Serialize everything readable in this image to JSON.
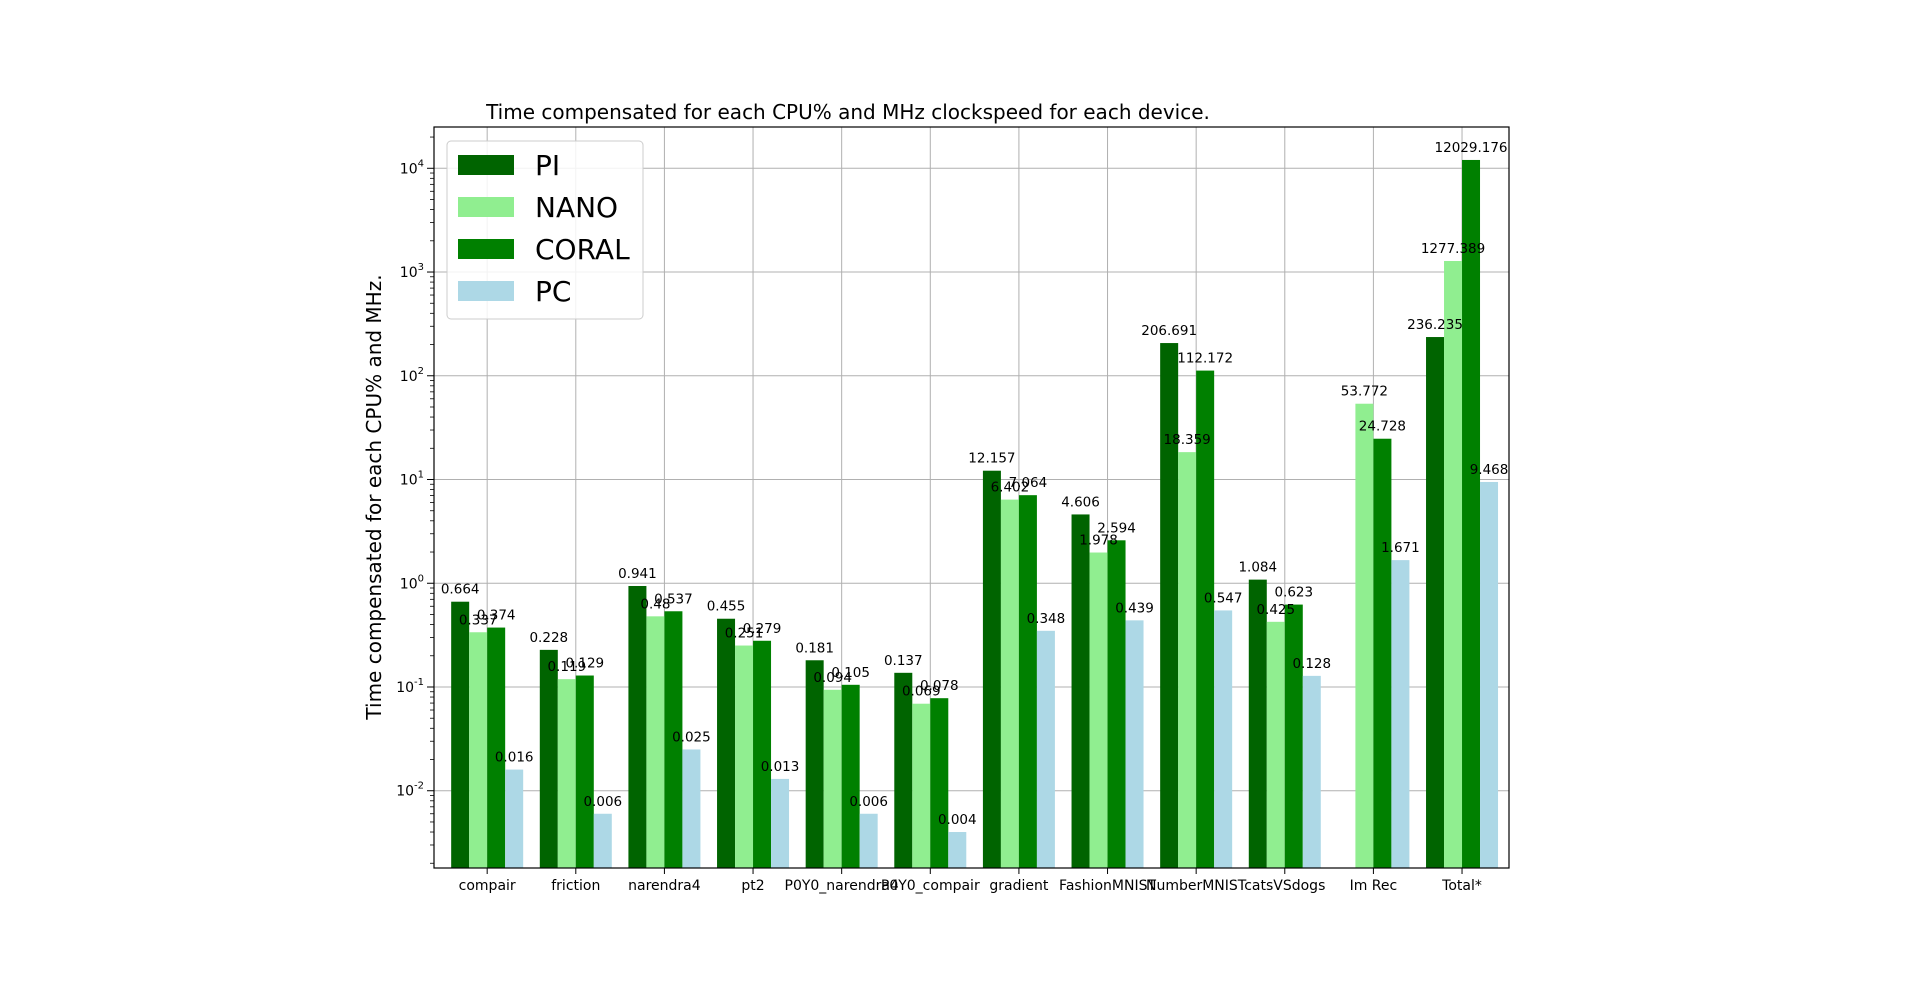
{
  "chart_data": {
    "type": "bar",
    "title": "Time compensated for each CPU% and MHz clockspeed for each device.",
    "xlabel": "",
    "ylabel": "Time compensated for each CPU% and MHz.",
    "yscale": "log",
    "ylim": [
      0.0018,
      25000
    ],
    "grid": true,
    "legend_position": "top-left",
    "categories": [
      "compair",
      "friction",
      "narendra4",
      "pt2",
      "P0Y0_narendra4",
      "P0Y0_compair",
      "gradient",
      "FashionMNIST",
      "NumberMNIST",
      "catsVSdogs",
      "Im Rec",
      "Total*"
    ],
    "series": [
      {
        "name": "PI",
        "color": "#006400",
        "values": [
          0.664,
          0.228,
          0.941,
          0.455,
          0.181,
          0.137,
          12.157,
          4.606,
          206.691,
          1.084,
          null,
          236.235
        ],
        "labels": [
          "0.664",
          "0.228",
          "0.941",
          "0.455",
          "0.181",
          "0.137",
          "12.157",
          "4.606",
          "206.691",
          "1.084",
          "",
          "236.235"
        ]
      },
      {
        "name": "NANO",
        "color": "#90ee90",
        "values": [
          0.337,
          0.119,
          0.48,
          0.251,
          0.094,
          0.069,
          6.402,
          1.978,
          18.359,
          0.425,
          53.772,
          1277.389
        ],
        "labels": [
          "0.337",
          "0.119",
          "0.48",
          "0.251",
          "0.094",
          "0.069",
          "6.402",
          "1.978",
          "18.359",
          "0.425",
          "53.772",
          "1277.389"
        ]
      },
      {
        "name": "CORAL",
        "color": "#008000",
        "values": [
          0.374,
          0.129,
          0.537,
          0.279,
          0.105,
          0.078,
          7.064,
          2.594,
          112.172,
          0.623,
          24.728,
          12029.176
        ],
        "labels": [
          "0.374",
          "0.129",
          "0.537",
          "0.279",
          "0.105",
          "0.078",
          "7.064",
          "2.594",
          "112.172",
          "0.623",
          "24.728",
          "12029.176"
        ]
      },
      {
        "name": "PC",
        "color": "#add8e6",
        "values": [
          0.016,
          0.006,
          0.025,
          0.013,
          0.006,
          0.004,
          0.348,
          0.439,
          0.547,
          0.128,
          1.671,
          9.468
        ],
        "labels": [
          "0.016",
          "0.006",
          "0.025",
          "0.013",
          "0.006",
          "0.004",
          "0.348",
          "0.439",
          "0.547",
          "0.128",
          "1.671",
          "9.468"
        ]
      }
    ],
    "y_ticks": [
      {
        "value": 0.01,
        "label": "10^-2"
      },
      {
        "value": 0.1,
        "label": "10^-1"
      },
      {
        "value": 1,
        "label": "10^0"
      },
      {
        "value": 10,
        "label": "10^1"
      },
      {
        "value": 100,
        "label": "10^2"
      },
      {
        "value": 1000,
        "label": "10^3"
      },
      {
        "value": 10000,
        "label": "10^4"
      }
    ]
  }
}
